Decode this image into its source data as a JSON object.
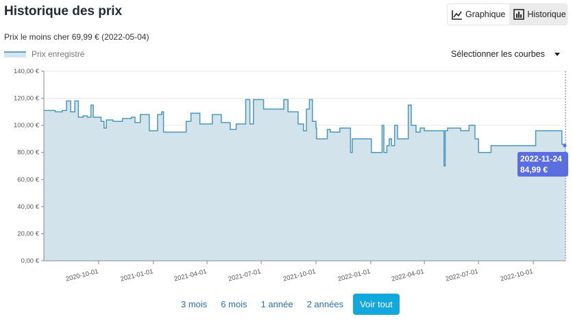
{
  "header": {
    "title": "Historique des prix",
    "cheapest": "Prix le moins cher 69,99 € (2022-05-04)"
  },
  "view_toggle": {
    "graph_label": "Graphique",
    "graph_icon": "line-chart-icon",
    "history_label": "Historique",
    "history_icon": "bar-chart-icon",
    "active": "graph"
  },
  "curve_select": {
    "label": "Sélectionner les courbes"
  },
  "tooltip": {
    "date": "2022-11-24",
    "price": "84,99 €"
  },
  "range_buttons": [
    "3 mois",
    "6 mois",
    "1 année",
    "2 années",
    "Voir tout"
  ],
  "range_active": 4,
  "colors": {
    "line": "#4a97bd",
    "fill": "#d3e3ec",
    "accent": "#12a8dc",
    "tooltip": "#5b6ee0"
  },
  "chart_data": {
    "type": "area",
    "legend": [
      "Prix enregistré"
    ],
    "legend_position": "top-left",
    "ylim": [
      0,
      140
    ],
    "grid": true,
    "y_ticks": [
      "0,00 €",
      "20,00 €",
      "40,00 €",
      "60,00 €",
      "80,00 €",
      "100,00 €",
      "120,00 €",
      "140,00 €"
    ],
    "x_ticks": [
      "2020-10-01",
      "2021-01-01",
      "2021-04-01",
      "2021-07-01",
      "2021-10-01",
      "2022-01-01",
      "2022-04-01",
      "2022-07-01",
      "2022-10-01"
    ],
    "series": [
      {
        "name": "Prix enregistré",
        "points": [
          [
            "2020-07-01",
            111
          ],
          [
            "2020-07-20",
            110
          ],
          [
            "2020-08-01",
            111
          ],
          [
            "2020-08-08",
            118
          ],
          [
            "2020-08-15",
            110
          ],
          [
            "2020-08-22",
            118
          ],
          [
            "2020-08-28",
            106
          ],
          [
            "2020-09-05",
            107
          ],
          [
            "2020-09-12",
            106
          ],
          [
            "2020-09-18",
            115
          ],
          [
            "2020-09-22",
            106
          ],
          [
            "2020-09-28",
            106
          ],
          [
            "2020-10-05",
            103
          ],
          [
            "2020-10-10",
            98
          ],
          [
            "2020-10-14",
            104
          ],
          [
            "2020-10-25",
            103
          ],
          [
            "2020-11-10",
            105
          ],
          [
            "2020-11-25",
            106
          ],
          [
            "2020-12-01",
            102
          ],
          [
            "2020-12-10",
            108
          ],
          [
            "2020-12-20",
            108
          ],
          [
            "2020-12-25",
            96
          ],
          [
            "2021-01-01",
            96
          ],
          [
            "2021-01-08",
            108
          ],
          [
            "2021-01-15",
            110
          ],
          [
            "2021-01-18",
            95
          ],
          [
            "2021-02-20",
            95
          ],
          [
            "2021-02-25",
            103
          ],
          [
            "2021-03-05",
            109
          ],
          [
            "2021-03-20",
            101
          ],
          [
            "2021-04-01",
            101
          ],
          [
            "2021-04-10",
            108
          ],
          [
            "2021-04-20",
            108
          ],
          [
            "2021-04-25",
            102
          ],
          [
            "2021-05-01",
            102
          ],
          [
            "2021-05-10",
            97
          ],
          [
            "2021-05-20",
            101
          ],
          [
            "2021-06-01",
            101
          ],
          [
            "2021-06-05",
            119
          ],
          [
            "2021-06-12",
            101
          ],
          [
            "2021-06-18",
            119
          ],
          [
            "2021-07-01",
            119
          ],
          [
            "2021-07-05",
            112
          ],
          [
            "2021-08-01",
            112
          ],
          [
            "2021-08-08",
            119
          ],
          [
            "2021-08-15",
            110
          ],
          [
            "2021-08-25",
            110
          ],
          [
            "2021-09-01",
            101
          ],
          [
            "2021-09-10",
            96
          ],
          [
            "2021-09-15",
            112
          ],
          [
            "2021-09-20",
            119
          ],
          [
            "2021-09-25",
            103
          ],
          [
            "2021-10-01",
            98
          ],
          [
            "2021-10-02",
            90
          ],
          [
            "2021-10-15",
            90
          ],
          [
            "2021-10-20",
            97
          ],
          [
            "2021-10-25",
            95
          ],
          [
            "2021-11-05",
            95
          ],
          [
            "2021-11-10",
            98
          ],
          [
            "2021-11-25",
            98
          ],
          [
            "2021-11-28",
            80
          ],
          [
            "2021-12-01",
            90
          ],
          [
            "2022-01-01",
            90
          ],
          [
            "2022-01-02",
            80
          ],
          [
            "2022-01-15",
            80
          ],
          [
            "2022-01-20",
            100
          ],
          [
            "2022-01-23",
            80
          ],
          [
            "2022-01-28",
            85
          ],
          [
            "2022-02-01",
            90
          ],
          [
            "2022-02-05",
            85
          ],
          [
            "2022-02-10",
            100
          ],
          [
            "2022-02-15",
            90
          ],
          [
            "2022-02-25",
            90
          ],
          [
            "2022-03-05",
            115
          ],
          [
            "2022-03-10",
            100
          ],
          [
            "2022-03-18",
            95
          ],
          [
            "2022-03-25",
            98
          ],
          [
            "2022-04-01",
            96
          ],
          [
            "2022-04-15",
            96
          ],
          [
            "2022-05-01",
            96
          ],
          [
            "2022-05-04",
            70
          ],
          [
            "2022-05-06",
            96
          ],
          [
            "2022-05-10",
            98
          ],
          [
            "2022-06-01",
            96
          ],
          [
            "2022-06-15",
            100
          ],
          [
            "2022-06-25",
            90
          ],
          [
            "2022-07-01",
            80
          ],
          [
            "2022-07-20",
            80
          ],
          [
            "2022-07-22",
            85
          ],
          [
            "2022-10-01",
            85
          ],
          [
            "2022-10-05",
            96
          ],
          [
            "2022-11-15",
            96
          ],
          [
            "2022-11-18",
            86
          ],
          [
            "2022-11-24",
            84.99
          ]
        ]
      }
    ]
  }
}
